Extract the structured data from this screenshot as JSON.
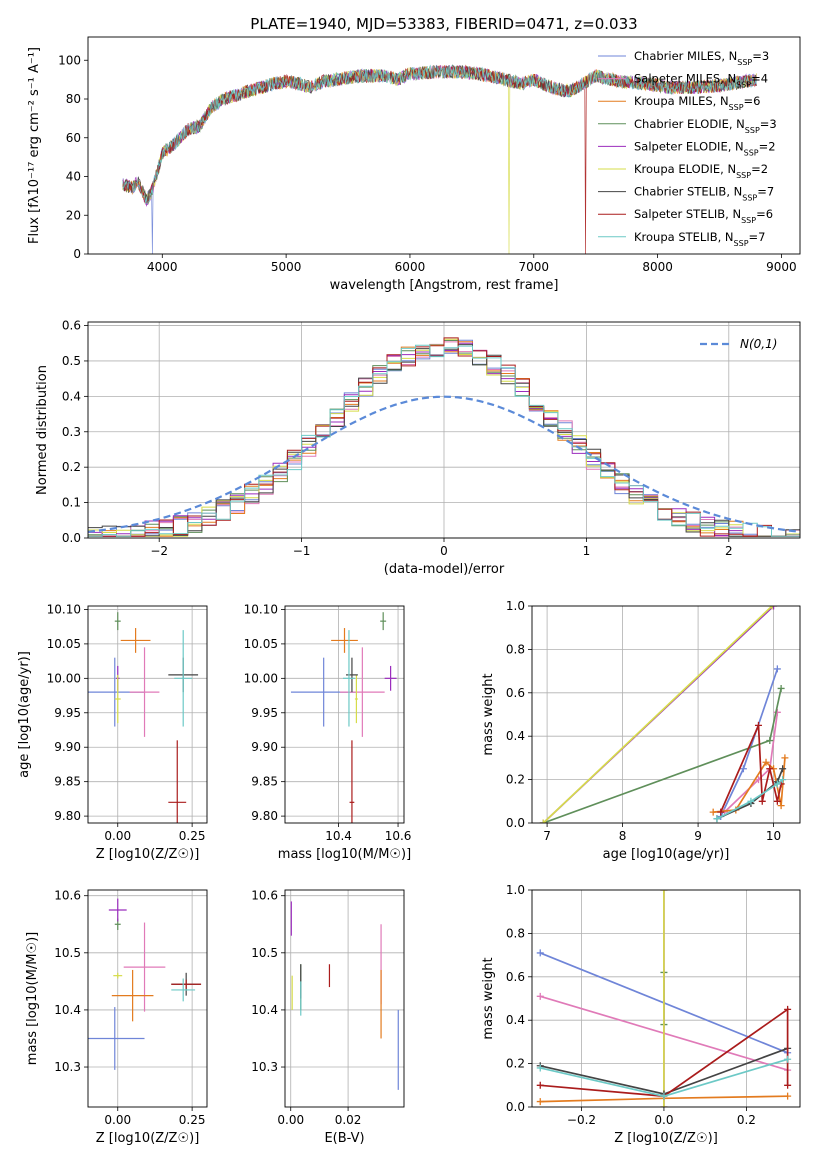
{
  "colors": {
    "series": [
      "#6f85d8",
      "#e07ab8",
      "#e37b1f",
      "#5f8f5a",
      "#9b2dbd",
      "#d6dc4a",
      "#444444",
      "#aa1c1c",
      "#6cc9c6"
    ],
    "gauss": "#5b8ad8"
  },
  "legend_labels": [
    "Chabrier MILES, N_SSP=3",
    "Salpeter MILES, N_SSP=4",
    "Kroupa MILES, N_SSP=6",
    "Chabrier ELODIE, N_SSP=3",
    "Salpeter ELODIE, N_SSP=2",
    "Kroupa ELODIE, N_SSP=2",
    "Chabrier STELIB, N_SSP=7",
    "Salpeter STELIB, N_SSP=6",
    "Kroupa STELIB, N_SSP=7"
  ],
  "chart_data": [
    {
      "id": "spectrum",
      "type": "line",
      "title": "PLATE=1940, MJD=53383, FIBERID=0471, z=0.033",
      "xlabel": "wavelength [Angstrom, rest frame]",
      "ylabel": "Flux [fλ10⁻¹⁷ erg cm⁻² s⁻¹ A⁻¹]",
      "xlim": [
        3400,
        9150
      ],
      "ylim": [
        0,
        112
      ],
      "xticks": [
        4000,
        5000,
        6000,
        7000,
        8000,
        9000
      ],
      "yticks": [
        0,
        20,
        40,
        60,
        80,
        100
      ],
      "grid": false,
      "legend_position": "top-right",
      "continuum": [
        [
          3680,
          36
        ],
        [
          3760,
          34
        ],
        [
          3800,
          38
        ],
        [
          3870,
          28
        ],
        [
          3900,
          30
        ],
        [
          3950,
          40
        ],
        [
          4000,
          52
        ],
        [
          4100,
          57
        ],
        [
          4200,
          64
        ],
        [
          4300,
          66
        ],
        [
          4400,
          76
        ],
        [
          4500,
          80
        ],
        [
          4600,
          82
        ],
        [
          4700,
          84
        ],
        [
          4800,
          86
        ],
        [
          4900,
          88
        ],
        [
          5000,
          89
        ],
        [
          5100,
          88
        ],
        [
          5200,
          86
        ],
        [
          5300,
          89
        ],
        [
          5400,
          90
        ],
        [
          5500,
          91
        ],
        [
          5600,
          92
        ],
        [
          5700,
          92
        ],
        [
          5800,
          92
        ],
        [
          5900,
          90
        ],
        [
          6000,
          93
        ],
        [
          6200,
          94
        ],
        [
          6400,
          94
        ],
        [
          6562,
          93
        ],
        [
          6700,
          91
        ],
        [
          6900,
          88
        ],
        [
          7000,
          90
        ],
        [
          7100,
          87
        ],
        [
          7200,
          85
        ],
        [
          7300,
          84
        ],
        [
          7400,
          88
        ],
        [
          7500,
          92
        ],
        [
          7700,
          89
        ],
        [
          7900,
          88
        ],
        [
          8100,
          86
        ],
        [
          8300,
          86
        ],
        [
          8500,
          87
        ],
        [
          8700,
          89
        ],
        [
          8800,
          90
        ]
      ],
      "drops": [
        {
          "series": 0,
          "x": 3920
        },
        {
          "series": 5,
          "x": 6800
        },
        {
          "series": 7,
          "x": 7420
        }
      ]
    },
    {
      "id": "residuals",
      "type": "histogram",
      "xlabel": "(data-model)/error",
      "ylabel": "Normed distribution",
      "xlim": [
        -2.5,
        2.5
      ],
      "ylim": [
        0,
        0.61
      ],
      "xticks": [
        -2,
        -1,
        0,
        1,
        2
      ],
      "yticks": [
        0.0,
        0.1,
        0.2,
        0.3,
        0.4,
        0.5,
        0.6
      ],
      "grid": true,
      "legend": "N(0,1)",
      "legend_position": "top-right",
      "bin_width": 0.1
    },
    {
      "id": "age-vs-Z",
      "type": "errorbar",
      "xlabel": "Z [log10(Z/Z☉)]",
      "ylabel": "age [log10(age/yr)]",
      "xlim": [
        -0.1,
        0.3
      ],
      "ylim": [
        9.79,
        10.105
      ],
      "xticks": [
        0.0,
        0.25
      ],
      "yticks": [
        9.8,
        9.85,
        9.9,
        9.95,
        10.0,
        10.05,
        10.1
      ],
      "grid": true,
      "points": [
        {
          "s": 0,
          "x": -0.01,
          "y": 9.98,
          "ex": 0.1,
          "ey": 0.05
        },
        {
          "s": 1,
          "x": 0.09,
          "y": 9.98,
          "ex": 0.05,
          "ey": 0.065
        },
        {
          "s": 2,
          "x": 0.06,
          "y": 10.055,
          "ex": 0.05,
          "ey": 0.018
        },
        {
          "s": 3,
          "x": 0.0,
          "y": 10.083,
          "ex": 0.01,
          "ey": 0.013
        },
        {
          "s": 4,
          "x": 0.0,
          "y": 10.0,
          "ex": 0.006,
          "ey": 0.018
        },
        {
          "s": 5,
          "x": 0.0,
          "y": 9.97,
          "ex": 0.01,
          "ey": 0.035
        },
        {
          "s": 6,
          "x": 0.22,
          "y": 10.005,
          "ex": 0.05,
          "ey": 0.025
        },
        {
          "s": 7,
          "x": 0.2,
          "y": 9.82,
          "ex": 0.03,
          "ey": 0.09
        },
        {
          "s": 8,
          "x": 0.22,
          "y": 10.0,
          "ex": 0.03,
          "ey": 0.07
        }
      ]
    },
    {
      "id": "age-vs-mass",
      "type": "errorbar",
      "xlabel": "mass [log10(M/M☉)]",
      "ylabel": "",
      "xlim": [
        10.22,
        10.62
      ],
      "ylim": [
        9.79,
        10.105
      ],
      "xticks": [
        10.4,
        10.6
      ],
      "yticks": [
        9.8,
        9.85,
        9.9,
        9.95,
        10.0,
        10.05,
        10.1
      ],
      "grid": true,
      "points": [
        {
          "s": 0,
          "x": 10.35,
          "y": 9.98,
          "ex": 0.11,
          "ey": 0.05
        },
        {
          "s": 1,
          "x": 10.48,
          "y": 9.98,
          "ex": 0.075,
          "ey": 0.065
        },
        {
          "s": 2,
          "x": 10.42,
          "y": 10.055,
          "ex": 0.045,
          "ey": 0.018
        },
        {
          "s": 3,
          "x": 10.55,
          "y": 10.083,
          "ex": 0.01,
          "ey": 0.013
        },
        {
          "s": 4,
          "x": 10.575,
          "y": 10.0,
          "ex": 0.02,
          "ey": 0.018
        },
        {
          "s": 5,
          "x": 10.46,
          "y": 9.97,
          "ex": 0.005,
          "ey": 0.035
        },
        {
          "s": 6,
          "x": 10.445,
          "y": 10.005,
          "ex": 0.02,
          "ey": 0.025
        },
        {
          "s": 7,
          "x": 10.445,
          "y": 9.82,
          "ex": 0.008,
          "ey": 0.09
        },
        {
          "s": 8,
          "x": 10.435,
          "y": 10.0,
          "ex": 0.02,
          "ey": 0.07
        }
      ]
    },
    {
      "id": "weight-vs-age",
      "type": "line",
      "xlabel": "age [log10(age/yr)]",
      "ylabel": "mass weight",
      "xlim": [
        6.8,
        10.35
      ],
      "ylim": [
        0,
        1.0
      ],
      "xticks": [
        7,
        8,
        9,
        10
      ],
      "yticks": [
        0.0,
        0.2,
        0.4,
        0.6,
        0.8,
        1.0
      ],
      "grid": true,
      "series": [
        {
          "s": 0,
          "points": [
            [
              9.3,
              0.03
            ],
            [
              9.6,
              0.25
            ],
            [
              10.05,
              0.71
            ]
          ]
        },
        {
          "s": 1,
          "points": [
            [
              9.35,
              0.05
            ],
            [
              9.8,
              0.2
            ],
            [
              9.95,
              0.25
            ],
            [
              10.05,
              0.51
            ]
          ]
        },
        {
          "s": 2,
          "points": [
            [
              9.2,
              0.05
            ],
            [
              9.5,
              0.06
            ],
            [
              9.9,
              0.28
            ],
            [
              10.0,
              0.25
            ],
            [
              10.1,
              0.08
            ],
            [
              10.15,
              0.3
            ]
          ]
        },
        {
          "s": 3,
          "points": [
            [
              6.95,
              0.0
            ],
            [
              9.95,
              0.38
            ],
            [
              10.1,
              0.62
            ]
          ]
        },
        {
          "s": 4,
          "points": [
            [
              6.95,
              0.0
            ],
            [
              10.0,
              1.0
            ]
          ]
        },
        {
          "s": 5,
          "points": [
            [
              6.95,
              0.0
            ],
            [
              9.98,
              1.0
            ]
          ]
        },
        {
          "s": 6,
          "points": [
            [
              9.25,
              0.02
            ],
            [
              9.7,
              0.09
            ],
            [
              10.05,
              0.19
            ],
            [
              10.12,
              0.25
            ]
          ]
        },
        {
          "s": 7,
          "points": [
            [
              9.3,
              0.05
            ],
            [
              9.8,
              0.45
            ],
            [
              9.85,
              0.1
            ],
            [
              9.95,
              0.25
            ],
            [
              10.05,
              0.1
            ],
            [
              10.1,
              0.18
            ]
          ]
        },
        {
          "s": 8,
          "points": [
            [
              9.25,
              0.02
            ],
            [
              9.7,
              0.1
            ],
            [
              10.05,
              0.18
            ],
            [
              10.12,
              0.2
            ]
          ]
        }
      ]
    },
    {
      "id": "mass-vs-Z",
      "type": "errorbar",
      "xlabel": "Z [log10(Z/Z☉)]",
      "ylabel": "mass [log10(M/M☉)]",
      "xlim": [
        -0.1,
        0.3
      ],
      "ylim": [
        10.23,
        10.61
      ],
      "xticks": [
        0.0,
        0.25
      ],
      "yticks": [
        10.3,
        10.4,
        10.5,
        10.6
      ],
      "grid": true,
      "points": [
        {
          "s": 0,
          "x": -0.01,
          "y": 10.35,
          "ex": 0.1,
          "ey": 0.055
        },
        {
          "s": 1,
          "x": 0.09,
          "y": 10.475,
          "ex": 0.07,
          "ey": 0.078
        },
        {
          "s": 2,
          "x": 0.05,
          "y": 10.425,
          "ex": 0.07,
          "ey": 0.045
        },
        {
          "s": 3,
          "x": 0.0,
          "y": 10.55,
          "ex": 0.01,
          "ey": 0.01
        },
        {
          "s": 4,
          "x": 0.0,
          "y": 10.575,
          "ex": 0.03,
          "ey": 0.02
        },
        {
          "s": 5,
          "x": 0.0,
          "y": 10.46,
          "ex": 0.015,
          "ey": 0.005
        },
        {
          "s": 6,
          "x": 0.23,
          "y": 10.445,
          "ex": 0.05,
          "ey": 0.02
        },
        {
          "s": 7,
          "x": 0.23,
          "y": 10.445,
          "ex": 0.05,
          "ey": 0.008
        },
        {
          "s": 8,
          "x": 0.22,
          "y": 10.435,
          "ex": 0.04,
          "ey": 0.02
        }
      ]
    },
    {
      "id": "mass-vs-ebv",
      "type": "errorbar",
      "xlabel": "E(B-V)",
      "ylabel": "",
      "xlim": [
        -0.002,
        0.0395
      ],
      "ylim": [
        10.23,
        10.61
      ],
      "xticks": [
        0.0,
        0.02
      ],
      "yticks": [
        10.3,
        10.4,
        10.5,
        10.6
      ],
      "grid": true,
      "points": [
        {
          "s": 0,
          "x": 0.0375,
          "y": 10.33,
          "ex": 0,
          "ey": 0.07
        },
        {
          "s": 1,
          "x": 0.0315,
          "y": 10.48,
          "ex": 0,
          "ey": 0.07
        },
        {
          "s": 2,
          "x": 0.0315,
          "y": 10.41,
          "ex": 0,
          "ey": 0.06
        },
        {
          "s": 3,
          "x": 0.0035,
          "y": 10.44,
          "ex": 0,
          "ey": 0.04
        },
        {
          "s": 4,
          "x": 0.0002,
          "y": 10.56,
          "ex": 0,
          "ey": 0.03
        },
        {
          "s": 5,
          "x": 0.0005,
          "y": 10.43,
          "ex": 0,
          "ey": 0.03
        },
        {
          "s": 6,
          "x": 0.0035,
          "y": 10.45,
          "ex": 0,
          "ey": 0.03
        },
        {
          "s": 7,
          "x": 0.0135,
          "y": 10.46,
          "ex": 0,
          "ey": 0.02
        },
        {
          "s": 8,
          "x": 0.0035,
          "y": 10.42,
          "ex": 0,
          "ey": 0.03
        }
      ]
    },
    {
      "id": "weight-vs-Z",
      "type": "line",
      "xlabel": "Z [log10(Z/Z☉)]",
      "ylabel": "mass weight",
      "xlim": [
        -0.32,
        0.33
      ],
      "ylim": [
        0,
        1.0
      ],
      "xticks": [
        -0.2,
        0.0,
        0.2
      ],
      "yticks": [
        0.0,
        0.2,
        0.4,
        0.6,
        0.8,
        1.0
      ],
      "grid": true,
      "series": [
        {
          "s": 0,
          "points": [
            [
              -0.3,
              0.71
            ],
            [
              0.3,
              0.25
            ]
          ]
        },
        {
          "s": 1,
          "points": [
            [
              -0.3,
              0.51
            ],
            [
              0.3,
              0.17
            ]
          ]
        },
        {
          "s": 2,
          "points": [
            [
              -0.3,
              0.025
            ],
            [
              0.0,
              0.04
            ],
            [
              0.3,
              0.05
            ]
          ]
        },
        {
          "s": 3,
          "points": [
            [
              0.0,
              0.38
            ],
            [
              0.0,
              0.62
            ]
          ]
        },
        {
          "s": 4,
          "points": [
            [
              0.0,
              0.0
            ],
            [
              0.0,
              1.0
            ]
          ]
        },
        {
          "s": 5,
          "points": [
            [
              0.0,
              0.0
            ],
            [
              0.0,
              1.0
            ]
          ]
        },
        {
          "s": 6,
          "points": [
            [
              -0.3,
              0.19
            ],
            [
              0.0,
              0.06
            ],
            [
              0.3,
              0.27
            ]
          ]
        },
        {
          "s": 7,
          "points": [
            [
              -0.3,
              0.1
            ],
            [
              0.0,
              0.05
            ],
            [
              0.3,
              0.45
            ],
            [
              0.3,
              0.1
            ]
          ]
        },
        {
          "s": 8,
          "points": [
            [
              -0.3,
              0.18
            ],
            [
              0.0,
              0.05
            ],
            [
              0.3,
              0.22
            ]
          ]
        }
      ]
    }
  ]
}
